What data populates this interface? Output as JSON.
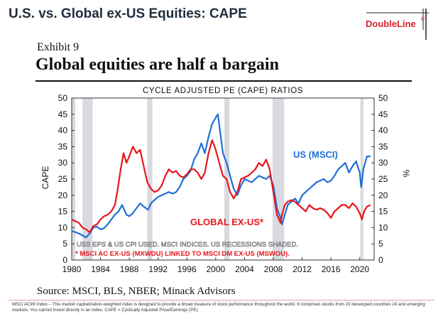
{
  "header": {
    "title": "U.S. vs. Global ex-US Equities: CAPE",
    "logo_text": "DoubleLine",
    "logo_reg": "®"
  },
  "exhibit": {
    "label": "Exhibit 9",
    "headline": "Global equities are half a bargain"
  },
  "chart_data": {
    "type": "line",
    "title": "CYCLE ADJUSTED PE (CAPE) RATIOS",
    "ylabel": "CAPE",
    "y2label": "%",
    "xlim": [
      1980,
      2022
    ],
    "ylim": [
      0,
      50
    ],
    "x_ticks": [
      "1980",
      "1984",
      "1988",
      "1992",
      "1996",
      "2000",
      "2004",
      "2008",
      "2012",
      "2016",
      "2020"
    ],
    "x_tick_values": [
      1980,
      1984,
      1988,
      1992,
      1996,
      2000,
      2004,
      2008,
      2012,
      2016,
      2020
    ],
    "y_ticks": [
      "0",
      "5",
      "10",
      "15",
      "20",
      "25",
      "30",
      "35",
      "40",
      "45",
      "50"
    ],
    "y_tick_values": [
      0,
      5,
      10,
      15,
      20,
      25,
      30,
      35,
      40,
      45,
      50
    ],
    "recessions": [
      [
        1980.0,
        1980.5
      ],
      [
        1981.5,
        1982.9
      ],
      [
        1990.5,
        1991.2
      ],
      [
        2001.2,
        2001.9
      ],
      [
        2007.9,
        2009.5
      ],
      [
        2020.1,
        2020.5
      ]
    ],
    "series": [
      {
        "name": "US (MSCI)",
        "color": "#1f6fd6",
        "label": "US (MSCI)",
        "x": [
          1980,
          1980.5,
          1981,
          1981.5,
          1982,
          1982.5,
          1983,
          1983.5,
          1984,
          1984.5,
          1985,
          1985.5,
          1986,
          1986.5,
          1987,
          1987.6,
          1988,
          1988.5,
          1989,
          1989.5,
          1990,
          1990.6,
          1991,
          1991.5,
          1992,
          1992.5,
          1993,
          1993.5,
          1994,
          1994.5,
          1995,
          1995.5,
          1996,
          1996.5,
          1997,
          1997.5,
          1998,
          1998.5,
          1999,
          1999.5,
          2000,
          2000.3,
          2000.7,
          2001,
          2001.5,
          2002,
          2002.5,
          2003,
          2003.5,
          2004,
          2004.5,
          2005,
          2005.5,
          2006,
          2006.5,
          2007,
          2007.5,
          2008,
          2008.5,
          2009,
          2009.2,
          2009.6,
          2010,
          2010.5,
          2011,
          2011.5,
          2012,
          2012.5,
          2013,
          2013.5,
          2014,
          2014.5,
          2015,
          2015.5,
          2016,
          2016.5,
          2017,
          2017.5,
          2018,
          2018.5,
          2019,
          2019.5,
          2020,
          2020.2,
          2020.5,
          2021,
          2021.5
        ],
        "values": [
          9,
          8.6,
          8.2,
          7.6,
          7,
          8.2,
          10,
          10.3,
          9.5,
          9.8,
          11,
          12.5,
          14,
          15,
          17,
          14,
          13.5,
          14.5,
          16,
          17.5,
          16.5,
          15.5,
          17.5,
          18.5,
          19.5,
          20,
          20.5,
          21,
          20.5,
          21,
          22.5,
          25,
          26,
          27.5,
          31,
          33,
          36,
          33,
          38,
          42,
          44,
          45,
          38,
          33,
          30,
          26,
          22,
          20,
          23,
          25,
          24.5,
          24,
          25,
          26,
          25.5,
          25,
          26,
          23,
          16,
          13,
          11,
          14,
          17,
          18,
          19,
          17.5,
          20,
          21,
          22,
          23,
          24,
          24.5,
          25,
          24,
          24.5,
          26,
          28,
          29,
          30,
          27,
          29,
          30.5,
          27,
          22.5,
          28,
          32,
          32
        ]
      },
      {
        "name": "GLOBAL EX-US*",
        "color": "#e8151b",
        "label": "GLOBAL EX-US*",
        "x": [
          1980,
          1980.5,
          1981,
          1981.5,
          1982,
          1982.5,
          1983,
          1983.5,
          1984,
          1984.5,
          1985,
          1985.5,
          1986,
          1986.4,
          1986.8,
          1987.2,
          1987.6,
          1988,
          1988.5,
          1989,
          1989.5,
          1990,
          1990.5,
          1991,
          1991.5,
          1992,
          1992.5,
          1993,
          1993.5,
          1994,
          1994.5,
          1995,
          1995.5,
          1996,
          1996.5,
          1997,
          1997.5,
          1998,
          1998.5,
          1999,
          1999.5,
          2000,
          2000.5,
          2001,
          2001.5,
          2002,
          2002.5,
          2003,
          2003.5,
          2004,
          2004.5,
          2005,
          2005.5,
          2006,
          2006.5,
          2007,
          2007.5,
          2008,
          2008.5,
          2009,
          2009.2,
          2009.6,
          2010,
          2010.5,
          2011,
          2011.5,
          2012,
          2012.5,
          2013,
          2013.5,
          2014,
          2014.5,
          2015,
          2015.5,
          2016,
          2016.5,
          2017,
          2017.5,
          2018,
          2018.5,
          2019,
          2019.5,
          2020,
          2020.3,
          2020.6,
          2021,
          2021.5
        ],
        "values": [
          12.5,
          12,
          11.5,
          10,
          9.5,
          8.5,
          10.5,
          11,
          12.5,
          13.5,
          14,
          15,
          17,
          22,
          28,
          33,
          30,
          32,
          35,
          33,
          34,
          29,
          24,
          22,
          21,
          21.5,
          23,
          26,
          28,
          27,
          27.5,
          26,
          25.5,
          26.5,
          28,
          28,
          27,
          25,
          27,
          33,
          37,
          34,
          30,
          26,
          25,
          21,
          19,
          21,
          25,
          25.5,
          26,
          27,
          28,
          30,
          29,
          31,
          28,
          21,
          14,
          11.5,
          14,
          17,
          18,
          18.5,
          18,
          17,
          16,
          15,
          17,
          16,
          15.5,
          16,
          15.5,
          14.5,
          13,
          15,
          16,
          17,
          17,
          16,
          17.5,
          16.5,
          14.5,
          12.5,
          15,
          16.5,
          17
        ]
      }
    ],
    "notes": [
      "USS EPS & US CPI USED.  MSCI INDICES.  US RECESSIONS SHADED.",
      "* MSCI AC EX-US (MXWDU) LINKED TO MSCI DM EX-US (MSWOU)."
    ]
  },
  "footer": {
    "source": "Source: MSCI, BLS, NBER; Minack Advisors",
    "disclaimer": "MSCI ACWI Index – This market capitalization-weighted index is designed to provide a broad measure of stock performance throughout the world. It comprises stocks from 23 developed countries 24 and emerging markets. You cannot invest directly in an index. CAPE = Cyclically Adjusted Price/Earnings (PE)."
  }
}
